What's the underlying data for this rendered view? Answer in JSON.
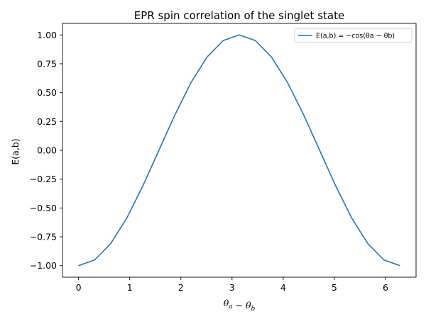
{
  "chart_data": {
    "type": "line",
    "title": "EPR spin correlation of the singlet state",
    "xlabel": "θa − θb",
    "ylabel": "E(a,b)",
    "xlim": [
      -0.3142,
      6.5973
    ],
    "ylim": [
      -1.1,
      1.1
    ],
    "x_ticks": [
      0,
      1,
      2,
      3,
      4,
      5,
      6
    ],
    "x_tick_labels": [
      "0",
      "1",
      "2",
      "3",
      "4",
      "5",
      "6"
    ],
    "y_ticks": [
      -1.0,
      -0.75,
      -0.5,
      -0.25,
      0.0,
      0.25,
      0.5,
      0.75,
      1.0
    ],
    "y_tick_labels": [
      "−1.00",
      "−0.75",
      "−0.50",
      "−0.25",
      "0.00",
      "0.25",
      "0.50",
      "0.75",
      "1.00"
    ],
    "grid": false,
    "legend_position": "top-right",
    "series": [
      {
        "name": "E(a,b) = −cos(θa − θb)",
        "color": "#1f77b4",
        "x": [
          0,
          0.3142,
          0.6283,
          0.9425,
          1.2566,
          1.5708,
          1.885,
          2.1991,
          2.5133,
          2.8274,
          3.1416,
          3.4558,
          3.7699,
          4.0841,
          4.3982,
          4.7124,
          5.0265,
          5.3407,
          5.6549,
          5.969,
          6.2832
        ],
        "y": [
          -1.0,
          -0.951,
          -0.809,
          -0.588,
          -0.309,
          0.0,
          0.309,
          0.588,
          0.809,
          0.951,
          1.0,
          0.951,
          0.809,
          0.588,
          0.309,
          0.0,
          -0.309,
          -0.588,
          -0.809,
          -0.951,
          -1.0
        ]
      }
    ]
  }
}
